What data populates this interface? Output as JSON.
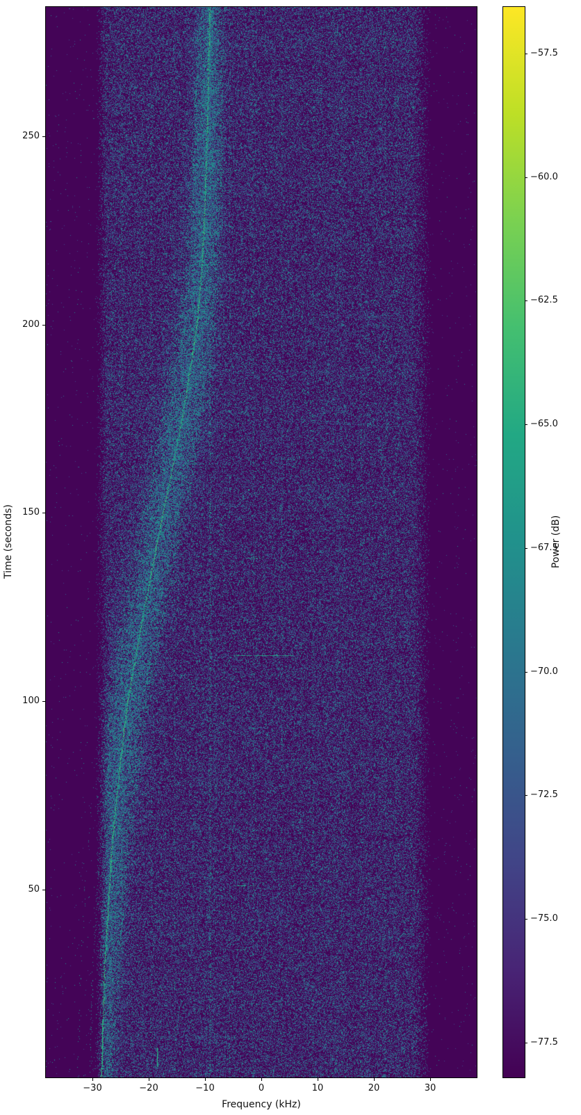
{
  "figure": {
    "background": "#ffffff",
    "description": "Spectrogram waterfall of received signal power vs frequency and time"
  },
  "chart_data": {
    "type": "heatmap",
    "subtype": "spectrogram-waterfall",
    "title": "",
    "xlabel": "Frequency (kHz)",
    "ylabel": "Time (seconds)",
    "colorbar_label": "Power (dB)",
    "colormap": "viridis",
    "grid": false,
    "legend": "none",
    "xlim": [
      -38.35,
      38.35
    ],
    "ylim": [
      0,
      284.2
    ],
    "clim": [
      -78.2,
      -56.5
    ],
    "xticks": [
      {
        "value": -30,
        "label": "−30"
      },
      {
        "value": -20,
        "label": "−20"
      },
      {
        "value": -10,
        "label": "−10"
      },
      {
        "value": 0,
        "label": "0"
      },
      {
        "value": 10,
        "label": "10"
      },
      {
        "value": 20,
        "label": "20"
      },
      {
        "value": 30,
        "label": "30"
      }
    ],
    "yticks": [
      {
        "value": 250,
        "label": "250"
      },
      {
        "value": 200,
        "label": "200"
      },
      {
        "value": 150,
        "label": "150"
      },
      {
        "value": 100,
        "label": "100"
      },
      {
        "value": 50,
        "label": "50"
      }
    ],
    "colorbar_ticks": [
      {
        "value": -57.5,
        "label": "−57.5"
      },
      {
        "value": -60.0,
        "label": "−60.0"
      },
      {
        "value": -62.5,
        "label": "−62.5"
      },
      {
        "value": -65.0,
        "label": "−65.0"
      },
      {
        "value": -67.5,
        "label": "−67.5"
      },
      {
        "value": -70.0,
        "label": "−70.0"
      },
      {
        "value": -72.5,
        "label": "−72.5"
      },
      {
        "value": -75.0,
        "label": "−75.0"
      },
      {
        "value": -77.5,
        "label": "−77.5"
      }
    ],
    "noise_band_khz": [
      -28.6,
      28.5
    ],
    "noise_floor_db": -78,
    "noise_band_db": -73,
    "doppler_trace": {
      "peak_db": -62,
      "points_time_freq": [
        [
          0,
          -28.5
        ],
        [
          14,
          -28.2
        ],
        [
          27,
          -28.0
        ],
        [
          40,
          -27.5
        ],
        [
          50,
          -27.1
        ],
        [
          64,
          -26.5
        ],
        [
          83,
          -25.2
        ],
        [
          100,
          -23.8
        ],
        [
          120,
          -21.4
        ],
        [
          135,
          -19.5
        ],
        [
          150,
          -17.5
        ],
        [
          163,
          -15.7
        ],
        [
          176,
          -14.0
        ],
        [
          190,
          -12.5
        ],
        [
          200,
          -11.5
        ],
        [
          215,
          -10.6
        ],
        [
          230,
          -10.1
        ],
        [
          250,
          -9.7
        ],
        [
          270,
          -9.4
        ],
        [
          284,
          -9.2
        ]
      ]
    },
    "artifacts": {
      "side_trace_offsets_khz": [
        {
          "df": 2.6,
          "p": 0.3
        },
        {
          "df": -2.1,
          "p": 0.2
        },
        {
          "df": 5.3,
          "p": 0.12
        },
        {
          "df": -4.3,
          "p": 0.09
        }
      ],
      "vertical_lines": [
        {
          "f": -24.9,
          "s": 0.1
        },
        {
          "f": -19.7,
          "s": 0.08
        },
        {
          "f": -15.5,
          "s": 0.07
        },
        {
          "f": -9.2,
          "s": 0.12
        },
        {
          "f": -5.7,
          "s": 0.09
        },
        {
          "f": -1.5,
          "s": 0.06
        },
        {
          "f": 3.6,
          "s": 0.05
        },
        {
          "f": 9.1,
          "s": 0.07
        },
        {
          "f": 13.5,
          "s": 0.05
        },
        {
          "f": 17.7,
          "s": 0.08
        },
        {
          "f": 22.0,
          "s": 0.06
        },
        {
          "f": 23.9,
          "s": 0.06
        }
      ],
      "horizontal_segments": [
        {
          "t": 112,
          "f0": -4.9,
          "f1": 5.4,
          "s": 0.85
        },
        {
          "t": 138,
          "f0": -2.7,
          "f1": -0.2,
          "s": 0.65
        },
        {
          "t": 51,
          "f0": -5.1,
          "f1": -1.4,
          "s": 0.55
        },
        {
          "t": 34,
          "f0": -4.5,
          "f1": -3.0,
          "s": 0.5
        }
      ],
      "bottom_bursts": [
        {
          "f": -28.3,
          "t0": 3,
          "t1": 15
        },
        {
          "f": -18.5,
          "t0": 3,
          "t1": 8
        }
      ],
      "diagonal_streaks": [
        {
          "t0": 194,
          "f0": 28.5,
          "t1": 120,
          "f1": 10.3,
          "p": 0.14
        },
        {
          "t0": 284,
          "f0": 24.0,
          "t1": 205,
          "f1": 9.0,
          "p": 0.09
        },
        {
          "t0": 150,
          "f0": 20.0,
          "t1": 60,
          "f1": 5.0,
          "p": 0.07
        }
      ]
    }
  }
}
